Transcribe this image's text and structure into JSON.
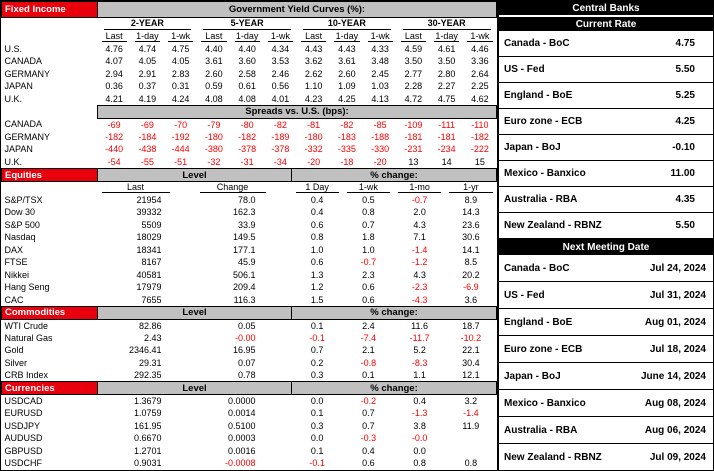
{
  "colors": {
    "section_red": "#e8000d",
    "header_gray": "#c0c0c0",
    "panel_black": "#000000",
    "negative": "#ff0000"
  },
  "fixed_income": {
    "section_label": "Fixed Income",
    "title": "Government Yield Curves (%):",
    "groups": [
      "2-YEAR",
      "5-YEAR",
      "10-YEAR",
      "30-YEAR"
    ],
    "subheaders": [
      "Last",
      "1-day",
      "1-wk"
    ],
    "yield_rows": [
      {
        "label": "U.S.",
        "values": [
          "4.76",
          "4.74",
          "4.75",
          "4.40",
          "4.40",
          "4.34",
          "4.43",
          "4.43",
          "4.33",
          "4.59",
          "4.61",
          "4.46"
        ]
      },
      {
        "label": "CANADA",
        "values": [
          "4.07",
          "4.05",
          "4.05",
          "3.61",
          "3.60",
          "3.53",
          "3.62",
          "3.61",
          "3.48",
          "3.50",
          "3.50",
          "3.36"
        ]
      },
      {
        "label": "GERMANY",
        "values": [
          "2.94",
          "2.91",
          "2.83",
          "2.60",
          "2.58",
          "2.46",
          "2.62",
          "2.60",
          "2.45",
          "2.77",
          "2.80",
          "2.64"
        ]
      },
      {
        "label": "JAPAN",
        "values": [
          "0.36",
          "0.37",
          "0.31",
          "0.59",
          "0.61",
          "0.56",
          "1.10",
          "1.09",
          "1.03",
          "2.28",
          "2.27",
          "2.25"
        ]
      },
      {
        "label": "U.K.",
        "values": [
          "4.21",
          "4.19",
          "4.24",
          "4.08",
          "4.08",
          "4.01",
          "4.23",
          "4.25",
          "4.13",
          "4.72",
          "4.75",
          "4.62"
        ]
      }
    ],
    "spreads_title": "Spreads vs. U.S. (bps):",
    "spread_rows": [
      {
        "label": "CANADA",
        "values": [
          "-69",
          "-69",
          "-70",
          "-79",
          "-80",
          "-82",
          "-81",
          "-82",
          "-85",
          "-109",
          "-111",
          "-110"
        ]
      },
      {
        "label": "GERMANY",
        "values": [
          "-182",
          "-184",
          "-192",
          "-180",
          "-182",
          "-189",
          "-180",
          "-183",
          "-188",
          "-181",
          "-181",
          "-182"
        ]
      },
      {
        "label": "JAPAN",
        "values": [
          "-440",
          "-438",
          "-444",
          "-380",
          "-378",
          "-378",
          "-332",
          "-335",
          "-330",
          "-231",
          "-234",
          "-222"
        ]
      },
      {
        "label": "U.K.",
        "values": [
          "-54",
          "-55",
          "-51",
          "-32",
          "-31",
          "-34",
          "-20",
          "-18",
          "-20",
          "13",
          "14",
          "15"
        ]
      }
    ]
  },
  "equities": {
    "section_label": "Equities",
    "level_label": "Level",
    "pct_label": "% change:",
    "subheaders": [
      "Last",
      "Change",
      "1 Day",
      "1-wk",
      "1-mo",
      "1-yr"
    ],
    "rows": [
      {
        "label": "S&P/TSX",
        "last": "21954",
        "change": "78.0",
        "pct": [
          "0.4",
          "0.5",
          "-0.7",
          "8.9"
        ]
      },
      {
        "label": "Dow 30",
        "last": "39332",
        "change": "162.3",
        "pct": [
          "0.4",
          "0.8",
          "2.0",
          "14.3"
        ]
      },
      {
        "label": "S&P 500",
        "last": "5509",
        "change": "33.9",
        "pct": [
          "0.6",
          "0.7",
          "4.3",
          "23.6"
        ]
      },
      {
        "label": "Nasdaq",
        "last": "18029",
        "change": "149.5",
        "pct": [
          "0.8",
          "1.8",
          "7.1",
          "30.6"
        ]
      },
      {
        "label": "DAX",
        "last": "18341",
        "change": "177.1",
        "pct": [
          "1.0",
          "1.0",
          "-1.4",
          "14.1"
        ]
      },
      {
        "label": "FTSE",
        "last": "8167",
        "change": "45.9",
        "pct": [
          "0.6",
          "-0.7",
          "-1.2",
          "8.5"
        ]
      },
      {
        "label": "Nikkei",
        "last": "40581",
        "change": "506.1",
        "pct": [
          "1.3",
          "2.3",
          "4.3",
          "20.2"
        ]
      },
      {
        "label": "Hang Seng",
        "last": "17979",
        "change": "209.4",
        "pct": [
          "1.2",
          "0.6",
          "-2.3",
          "-6.9"
        ]
      },
      {
        "label": "CAC",
        "last": "7655",
        "change": "116.3",
        "pct": [
          "1.5",
          "0.6",
          "-4.3",
          "3.6"
        ]
      }
    ]
  },
  "commodities": {
    "section_label": "Commodities",
    "level_label": "Level",
    "pct_label": "% change:",
    "rows": [
      {
        "label": "WTI Crude",
        "last": "82.86",
        "change": "0.05",
        "pct": [
          "0.1",
          "2.4",
          "11.6",
          "18.7"
        ]
      },
      {
        "label": "Natural Gas",
        "last": "2.43",
        "change": "-0.00",
        "pct": [
          "-0.1",
          "-7.4",
          "-11.7",
          "-10.2"
        ]
      },
      {
        "label": "Gold",
        "last": "2346.41",
        "change": "16.95",
        "pct": [
          "0.7",
          "2.1",
          "5.2",
          "22.1"
        ]
      },
      {
        "label": "Silver",
        "last": "29.31",
        "change": "0.07",
        "pct": [
          "0.2",
          "-0.8",
          "-8.3",
          "30.4"
        ]
      },
      {
        "label": "CRB Index",
        "last": "292.35",
        "change": "0.78",
        "pct": [
          "0.3",
          "0.1",
          "1.1",
          "12.1"
        ]
      }
    ]
  },
  "currencies": {
    "section_label": "Currencies",
    "level_label": "Level",
    "pct_label": "% change:",
    "rows": [
      {
        "label": "USDCAD",
        "last": "1.3679",
        "change": "0.0000",
        "pct": [
          "0.0",
          "-0.2",
          "0.4",
          "3.2"
        ]
      },
      {
        "label": "EURUSD",
        "last": "1.0759",
        "change": "0.0014",
        "pct": [
          "0.1",
          "0.7",
          "-1.3",
          "-1.4"
        ]
      },
      {
        "label": "USDJPY",
        "last": "161.95",
        "change": "0.5100",
        "pct": [
          "0.3",
          "0.7",
          "3.8",
          "11.9"
        ]
      },
      {
        "label": "AUDUSD",
        "last": "0.6670",
        "change": "0.0003",
        "pct": [
          "0.0",
          "-0.3",
          "-0.0",
          ""
        ]
      },
      {
        "label": "GBPUSD",
        "last": "1.2701",
        "change": "0.0016",
        "pct": [
          "0.1",
          "0.4",
          "0.0",
          ""
        ]
      },
      {
        "label": "USDCHF",
        "last": "0.9031",
        "change": "-0.0008",
        "pct": [
          "-0.1",
          "0.6",
          "0.8",
          "0.8"
        ]
      }
    ]
  },
  "central_banks": {
    "title": "Central Banks",
    "current_rate_label": "Current Rate",
    "rates": [
      {
        "name": "Canada - BoC",
        "value": "4.75"
      },
      {
        "name": "US - Fed",
        "value": "5.50"
      },
      {
        "name": "England - BoE",
        "value": "5.25"
      },
      {
        "name": "Euro zone - ECB",
        "value": "4.25"
      },
      {
        "name": "Japan - BoJ",
        "value": "-0.10"
      },
      {
        "name": "Mexico - Banxico",
        "value": "11.00"
      },
      {
        "name": "Australia - RBA",
        "value": "4.35"
      },
      {
        "name": "New Zealand - RBNZ",
        "value": "5.50"
      }
    ],
    "next_meeting_label": "Next Meeting Date",
    "meetings": [
      {
        "name": "Canada - BoC",
        "value": "Jul 24, 2024"
      },
      {
        "name": "US - Fed",
        "value": "Jul 31, 2024"
      },
      {
        "name": "England - BoE",
        "value": "Aug 01, 2024"
      },
      {
        "name": "Euro zone - ECB",
        "value": "Jul 18, 2024"
      },
      {
        "name": "Japan - BoJ",
        "value": "June 14, 2024"
      },
      {
        "name": "Mexico - Banxico",
        "value": "Aug 08, 2024"
      },
      {
        "name": "Australia - RBA",
        "value": "Aug 06, 2024"
      },
      {
        "name": "New Zealand - RBNZ",
        "value": "Jul 09, 2024"
      }
    ]
  }
}
